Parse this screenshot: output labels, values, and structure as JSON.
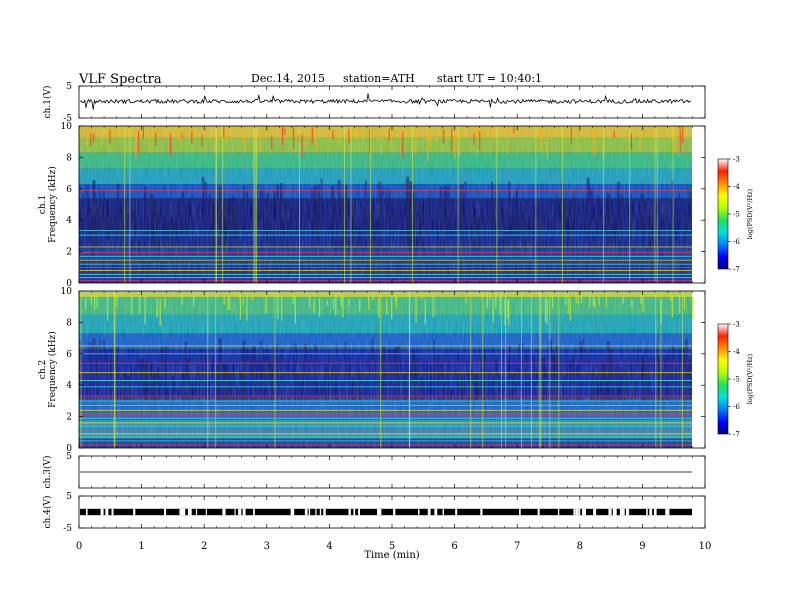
{
  "header": {
    "title": "VLF Spectra",
    "date": "Dec.14, 2015",
    "station": "station=ATH",
    "start": "start UT =  10:40:1"
  },
  "chart_data": [
    {
      "type": "line",
      "panel": "ch1-waveform",
      "ylabel": "ch.1(V)",
      "ylim": [
        -5,
        5
      ],
      "yticks": [
        "5",
        "-5"
      ],
      "baseline": 0.2,
      "noise": "continuous with spikes"
    },
    {
      "type": "heatmap",
      "panel": "ch1-spectrogram",
      "ylabel": "ch.1\nFrequency (kHz)",
      "ylabel_line1": "ch.1",
      "ylabel_line2": "Frequency (kHz)",
      "ylim": [
        0,
        10
      ],
      "yticks": [
        "0",
        "2",
        "4",
        "6",
        "8",
        "10"
      ],
      "colorbar": {
        "label": "log(PSD(V²/Hz)",
        "range": [
          -7,
          -3
        ],
        "ticks": [
          "-3",
          "-4",
          "-5",
          "-6",
          "-7"
        ],
        "colors": [
          "#00007a",
          "#0000ff",
          "#0080ff",
          "#00e0e0",
          "#20e060",
          "#b0ff00",
          "#ffff00",
          "#ff9000",
          "#ff2000",
          "#ffffff"
        ]
      }
    },
    {
      "type": "heatmap",
      "panel": "ch2-spectrogram",
      "ylabel": "ch.2\nFrequency (kHz)",
      "ylabel_line1": "ch.2",
      "ylabel_line2": "Frequency (kHz)",
      "ylim": [
        0,
        10
      ],
      "yticks": [
        "0",
        "2",
        "4",
        "6",
        "8",
        "10"
      ],
      "colorbar": {
        "label": "log(PSD(V²/Hz)",
        "range": [
          -7,
          -3
        ],
        "ticks": [
          "-3",
          "-4",
          "-5",
          "-6",
          "-7"
        ],
        "colors": [
          "#00007a",
          "#0000ff",
          "#0080ff",
          "#00e0e0",
          "#20e060",
          "#b0ff00",
          "#ffff00",
          "#ff9000",
          "#ff2000",
          "#ffffff"
        ]
      }
    },
    {
      "type": "line",
      "panel": "ch3-waveform",
      "ylabel": "ch.3(V)",
      "ylim": [
        -5,
        5
      ],
      "yticks": [
        "5"
      ],
      "baseline": 0
    },
    {
      "type": "line",
      "panel": "ch4-waveform",
      "ylabel": "ch.4(V)",
      "ylim": [
        -5,
        5
      ],
      "yticks": [
        "5",
        "-5"
      ],
      "baseline": 0,
      "noise": "square pulses"
    },
    {
      "type": "axis",
      "xlabel": "Time (min)",
      "xlim": [
        0,
        10
      ],
      "xticks": [
        "0",
        "1",
        "2",
        "3",
        "4",
        "5",
        "6",
        "7",
        "8",
        "9",
        "10"
      ]
    }
  ]
}
